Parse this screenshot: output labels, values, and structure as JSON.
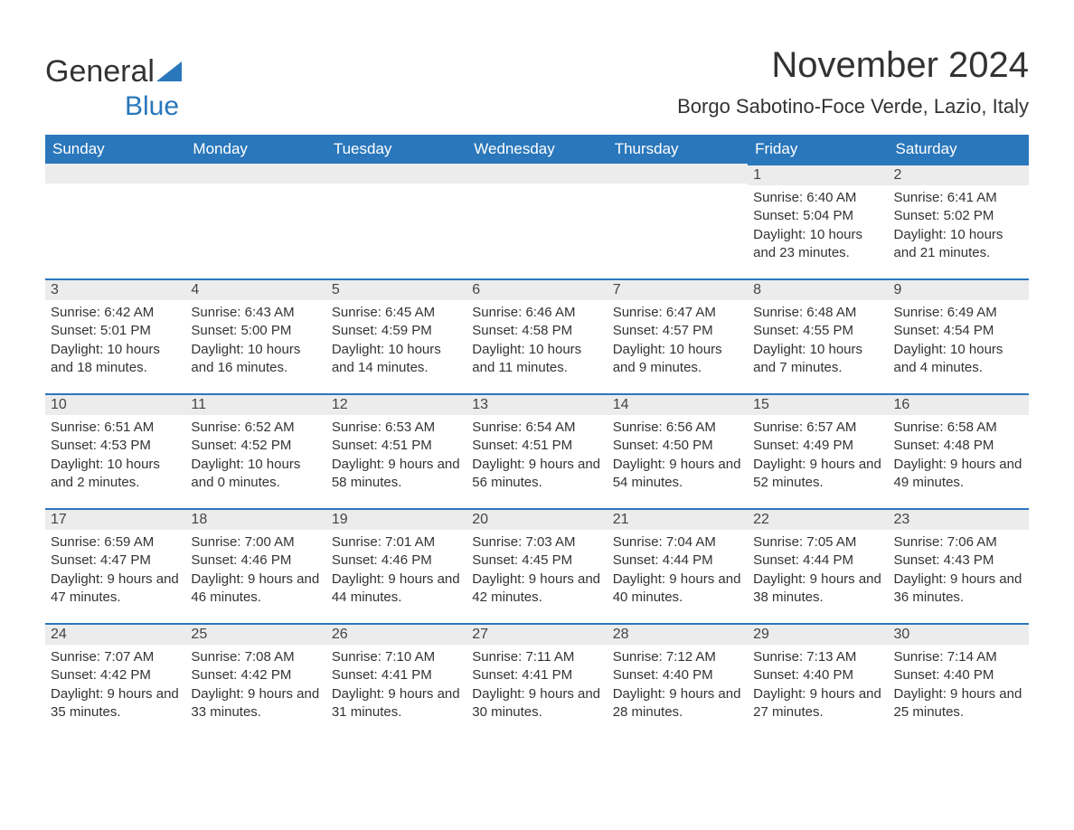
{
  "logo": {
    "general": "General",
    "blue": "Blue"
  },
  "title": "November 2024",
  "location": "Borgo Sabotino-Foce Verde, Lazio, Italy",
  "columns": [
    "Sunday",
    "Monday",
    "Tuesday",
    "Wednesday",
    "Thursday",
    "Friday",
    "Saturday"
  ],
  "startOffset": 5,
  "days": [
    {
      "n": 1,
      "sr": "6:40 AM",
      "ss": "5:04 PM",
      "dl": "10 hours and 23 minutes."
    },
    {
      "n": 2,
      "sr": "6:41 AM",
      "ss": "5:02 PM",
      "dl": "10 hours and 21 minutes."
    },
    {
      "n": 3,
      "sr": "6:42 AM",
      "ss": "5:01 PM",
      "dl": "10 hours and 18 minutes."
    },
    {
      "n": 4,
      "sr": "6:43 AM",
      "ss": "5:00 PM",
      "dl": "10 hours and 16 minutes."
    },
    {
      "n": 5,
      "sr": "6:45 AM",
      "ss": "4:59 PM",
      "dl": "10 hours and 14 minutes."
    },
    {
      "n": 6,
      "sr": "6:46 AM",
      "ss": "4:58 PM",
      "dl": "10 hours and 11 minutes."
    },
    {
      "n": 7,
      "sr": "6:47 AM",
      "ss": "4:57 PM",
      "dl": "10 hours and 9 minutes."
    },
    {
      "n": 8,
      "sr": "6:48 AM",
      "ss": "4:55 PM",
      "dl": "10 hours and 7 minutes."
    },
    {
      "n": 9,
      "sr": "6:49 AM",
      "ss": "4:54 PM",
      "dl": "10 hours and 4 minutes."
    },
    {
      "n": 10,
      "sr": "6:51 AM",
      "ss": "4:53 PM",
      "dl": "10 hours and 2 minutes."
    },
    {
      "n": 11,
      "sr": "6:52 AM",
      "ss": "4:52 PM",
      "dl": "10 hours and 0 minutes."
    },
    {
      "n": 12,
      "sr": "6:53 AM",
      "ss": "4:51 PM",
      "dl": "9 hours and 58 minutes."
    },
    {
      "n": 13,
      "sr": "6:54 AM",
      "ss": "4:51 PM",
      "dl": "9 hours and 56 minutes."
    },
    {
      "n": 14,
      "sr": "6:56 AM",
      "ss": "4:50 PM",
      "dl": "9 hours and 54 minutes."
    },
    {
      "n": 15,
      "sr": "6:57 AM",
      "ss": "4:49 PM",
      "dl": "9 hours and 52 minutes."
    },
    {
      "n": 16,
      "sr": "6:58 AM",
      "ss": "4:48 PM",
      "dl": "9 hours and 49 minutes."
    },
    {
      "n": 17,
      "sr": "6:59 AM",
      "ss": "4:47 PM",
      "dl": "9 hours and 47 minutes."
    },
    {
      "n": 18,
      "sr": "7:00 AM",
      "ss": "4:46 PM",
      "dl": "9 hours and 46 minutes."
    },
    {
      "n": 19,
      "sr": "7:01 AM",
      "ss": "4:46 PM",
      "dl": "9 hours and 44 minutes."
    },
    {
      "n": 20,
      "sr": "7:03 AM",
      "ss": "4:45 PM",
      "dl": "9 hours and 42 minutes."
    },
    {
      "n": 21,
      "sr": "7:04 AM",
      "ss": "4:44 PM",
      "dl": "9 hours and 40 minutes."
    },
    {
      "n": 22,
      "sr": "7:05 AM",
      "ss": "4:44 PM",
      "dl": "9 hours and 38 minutes."
    },
    {
      "n": 23,
      "sr": "7:06 AM",
      "ss": "4:43 PM",
      "dl": "9 hours and 36 minutes."
    },
    {
      "n": 24,
      "sr": "7:07 AM",
      "ss": "4:42 PM",
      "dl": "9 hours and 35 minutes."
    },
    {
      "n": 25,
      "sr": "7:08 AM",
      "ss": "4:42 PM",
      "dl": "9 hours and 33 minutes."
    },
    {
      "n": 26,
      "sr": "7:10 AM",
      "ss": "4:41 PM",
      "dl": "9 hours and 31 minutes."
    },
    {
      "n": 27,
      "sr": "7:11 AM",
      "ss": "4:41 PM",
      "dl": "9 hours and 30 minutes."
    },
    {
      "n": 28,
      "sr": "7:12 AM",
      "ss": "4:40 PM",
      "dl": "9 hours and 28 minutes."
    },
    {
      "n": 29,
      "sr": "7:13 AM",
      "ss": "4:40 PM",
      "dl": "9 hours and 27 minutes."
    },
    {
      "n": 30,
      "sr": "7:14 AM",
      "ss": "4:40 PM",
      "dl": "9 hours and 25 minutes."
    }
  ],
  "labels": {
    "sunrise": "Sunrise:",
    "sunset": "Sunset:",
    "daylight": "Daylight:"
  },
  "style": {
    "header_bg": "#2a77bb",
    "header_fg": "#ffffff",
    "daynum_bg": "#ececec",
    "daynum_border": "#2a77bb",
    "text_color": "#333333",
    "logo_blue": "#2a77bb"
  }
}
